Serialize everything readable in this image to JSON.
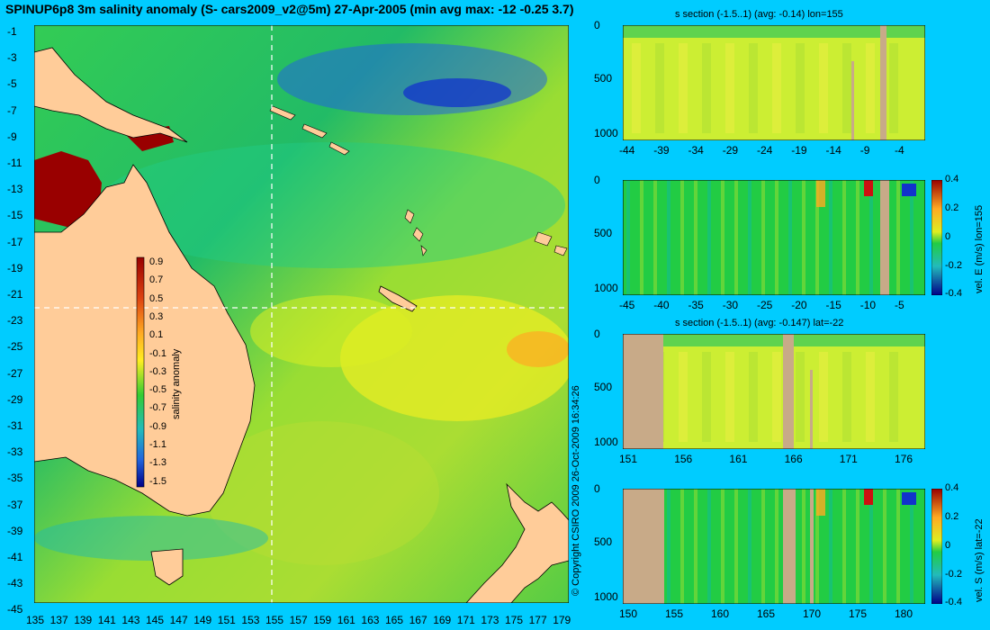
{
  "title": "SPINUP6p8 3m salinity anomaly (S- cars2009_v2@5m) 27-Apr-2005 (min avg max: -12 -0.25 3.7)",
  "copyright": "© Copyright CSIRO 2009   26-Oct-2009 16:34:26",
  "map": {
    "lat_ticks": [
      "-1",
      "-3",
      "-5",
      "-7",
      "-9",
      "-11",
      "-13",
      "-15",
      "-17",
      "-19",
      "-21",
      "-23",
      "-25",
      "-27",
      "-29",
      "-31",
      "-33",
      "-35",
      "-37",
      "-39",
      "-41",
      "-43",
      "-45"
    ],
    "lon_ticks": [
      "135",
      "137",
      "139",
      "141",
      "143",
      "145",
      "147",
      "149",
      "151",
      "153",
      "155",
      "157",
      "159",
      "161",
      "163",
      "165",
      "167",
      "169",
      "171",
      "173",
      "175",
      "177",
      "179"
    ],
    "colorbar": {
      "label": "salinity anomaly",
      "ticks": [
        "0.9",
        "0.7",
        "0.5",
        "0.3",
        "0.1",
        "-0.1",
        "-0.3",
        "-0.5",
        "-0.7",
        "-0.9",
        "-1.1",
        "-1.3",
        "-1.5"
      ]
    },
    "section_lon": 155,
    "section_lat": -22
  },
  "sections": [
    {
      "id": "s-lon",
      "title": "s section (-1.5..1) (avg: -0.14) lon=155",
      "y_ticks": [
        "0",
        "500",
        "1000"
      ],
      "x_ticks": [
        "-44",
        "-39",
        "-34",
        "-29",
        "-24",
        "-19",
        "-14",
        "-9",
        "-4"
      ],
      "colorbar": null
    },
    {
      "id": "vel-e",
      "title": "",
      "y_ticks": [
        "0",
        "500",
        "1000"
      ],
      "x_ticks": [
        "-45",
        "-40",
        "-35",
        "-30",
        "-25",
        "-20",
        "-15",
        "-10",
        "-5"
      ],
      "colorbar": {
        "label": "vel. E (m/s) lon=155",
        "ticks": [
          "0.4",
          "0.2",
          "0",
          "-0.2",
          "-0.4"
        ]
      }
    },
    {
      "id": "s-lat",
      "title": "s section (-1.5..1) (avg: -0.147) lat=-22",
      "y_ticks": [
        "0",
        "500",
        "1000"
      ],
      "x_ticks": [
        "151",
        "156",
        "161",
        "166",
        "171",
        "176"
      ],
      "colorbar": null
    },
    {
      "id": "vel-s",
      "title": "",
      "y_ticks": [
        "0",
        "500",
        "1000"
      ],
      "x_ticks": [
        "150",
        "155",
        "160",
        "165",
        "170",
        "175",
        "180"
      ],
      "colorbar": {
        "label": "vel. S (m/s) lat=-22",
        "ticks": [
          "0.4",
          "0.2",
          "0",
          "-0.2",
          "-0.4"
        ]
      }
    }
  ],
  "colors": {
    "background": "#00ccff",
    "land": "#ffcc99",
    "section_land": "#c8aa88",
    "ocean_green": "#22cc44",
    "ocean_yellow": "#ccee33",
    "positive_red": "#990000",
    "negative_blue": "#1133cc"
  }
}
